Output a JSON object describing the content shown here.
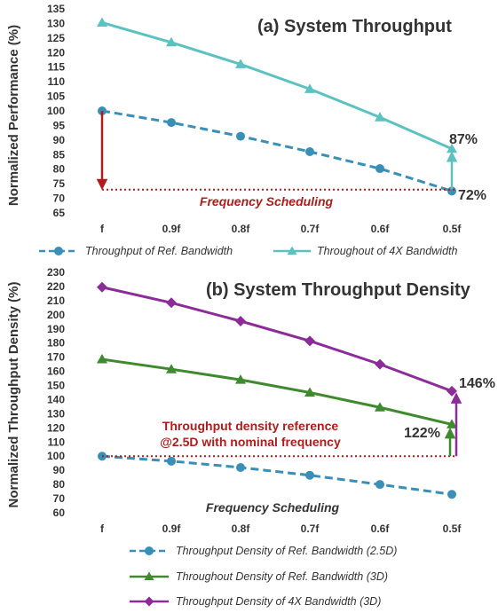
{
  "colors": {
    "ref": "#3a8fb7",
    "x4": "#5bc2c0",
    "green": "#3f8a2e",
    "purple": "#8b2c99",
    "red": "#b01c1c",
    "text": "#333333"
  },
  "chart_data": [
    {
      "type": "line",
      "title": "(a) System Throughput",
      "ylabel": "Normalized Performance (%)",
      "categories": [
        "f",
        "0.9f",
        "0.8f",
        "0.7f",
        "0.6f",
        "0.5f"
      ],
      "ylim": [
        65,
        135
      ],
      "yticks": [
        65,
        70,
        75,
        80,
        85,
        90,
        95,
        100,
        105,
        110,
        115,
        120,
        125,
        130,
        135
      ],
      "series": [
        {
          "name": "Throughput of Ref. Bandwidth",
          "marker": "circle",
          "dashed": true,
          "color": "#3a8fb7",
          "values": [
            100,
            96,
            91.3,
            86,
            80.2,
            72.5
          ]
        },
        {
          "name": "Throughout of 4X Bandwidth",
          "marker": "triangle",
          "dashed": false,
          "color": "#5bc2c0",
          "values": [
            130.3,
            123.5,
            116,
            107.5,
            97.8,
            87
          ]
        }
      ],
      "annotations": {
        "reference_label": "Frequency Scheduling",
        "reference_level": 73,
        "top_value_label": "87%",
        "bottom_value_label": "72%"
      },
      "legend_position": "bottom"
    },
    {
      "type": "line",
      "title": "(b) System Throughput Density",
      "ylabel": "Normalized Throughput Density (%)",
      "categories": [
        "f",
        "0.9f",
        "0.8f",
        "0.7f",
        "0.6f",
        "0.5f"
      ],
      "ylim": [
        60,
        230
      ],
      "yticks": [
        60,
        70,
        80,
        90,
        100,
        110,
        120,
        130,
        140,
        150,
        160,
        170,
        180,
        190,
        200,
        210,
        220,
        230
      ],
      "series": [
        {
          "name": "Throughput Density of Ref. Bandwidth (2.5D)",
          "marker": "circle",
          "dashed": true,
          "color": "#3a8fb7",
          "values": [
            100,
            96.5,
            92,
            86.5,
            80,
            73
          ]
        },
        {
          "name": "Throughout Density of Ref. Bandwidth (3D)",
          "marker": "triangle",
          "dashed": false,
          "color": "#3f8a2e",
          "values": [
            168.5,
            161.5,
            154,
            145,
            134.5,
            122.5
          ]
        },
        {
          "name": "Throughput Density of 4X Bandwidth (3D)",
          "marker": "diamond",
          "dashed": false,
          "color": "#8b2c99",
          "values": [
            219.5,
            208.5,
            195.5,
            181.5,
            165,
            146
          ]
        }
      ],
      "annotations": {
        "reference_note_line1": "Throughput density reference",
        "reference_note_line2": "@2.5D with nominal frequency",
        "reference_label": "Frequency Scheduling",
        "reference_level": 100,
        "top_value_label": "146%",
        "mid_value_label": "122%"
      },
      "legend_position": "bottom"
    }
  ]
}
